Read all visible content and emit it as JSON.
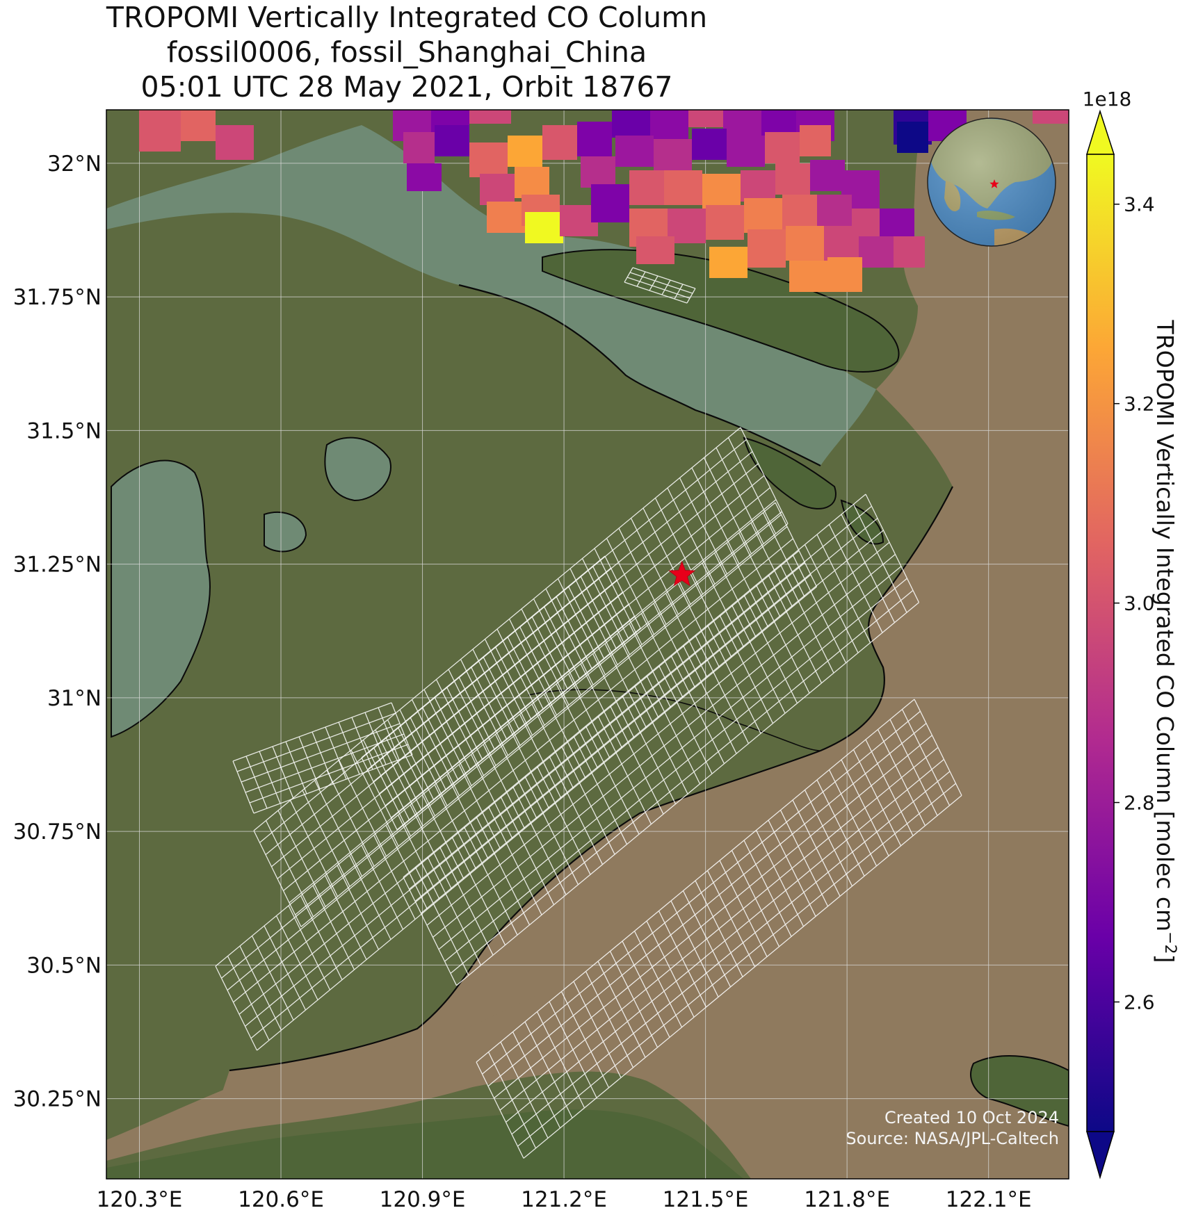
{
  "title": {
    "line1": "TROPOMI Vertically Integrated CO Column",
    "line2": "fossil0006, fossil_Shanghai_China",
    "line3": "05:01 UTC 28 May 2021, Orbit 18767"
  },
  "map": {
    "lon_range": [
      120.23,
      122.27
    ],
    "lat_range": [
      30.1,
      32.1
    ],
    "lon_ticks": [
      {
        "value": 120.3,
        "label": "120.3°E"
      },
      {
        "value": 120.6,
        "label": "120.6°E"
      },
      {
        "value": 120.9,
        "label": "120.9°E"
      },
      {
        "value": 121.2,
        "label": "121.2°E"
      },
      {
        "value": 121.5,
        "label": "121.5°E"
      },
      {
        "value": 121.8,
        "label": "121.8°E"
      },
      {
        "value": 122.1,
        "label": "122.1°E"
      }
    ],
    "lat_ticks": [
      {
        "value": 32.0,
        "label": "32°N"
      },
      {
        "value": 31.75,
        "label": "31.75°N"
      },
      {
        "value": 31.5,
        "label": "31.5°N"
      },
      {
        "value": 31.25,
        "label": "31.25°N"
      },
      {
        "value": 31.0,
        "label": "31°N"
      },
      {
        "value": 30.75,
        "label": "30.75°N"
      },
      {
        "value": 30.5,
        "label": "30.5°N"
      },
      {
        "value": 30.25,
        "label": "30.25°N"
      }
    ],
    "target": {
      "lon": 121.45,
      "lat": 31.23,
      "color": "#e8001a"
    },
    "colors": {
      "land": "#5d6a40",
      "water": "#6f8a74",
      "sea": "#8f7a5e",
      "coast": "#0a0a0a",
      "gridline": "#d9d9d9",
      "footprint": "#ffffff"
    }
  },
  "colorbar": {
    "label": "TROPOMI Vertically Integrated CO Column [molec cm",
    "label_exp": "−2",
    "label_close": "]",
    "offset": "1e18",
    "range": [
      2.47,
      3.45
    ],
    "ticks": [
      {
        "value": 2.6,
        "label": "2.6"
      },
      {
        "value": 2.8,
        "label": "2.8"
      },
      {
        "value": 3.0,
        "label": "3.0"
      },
      {
        "value": 3.2,
        "label": "3.2"
      },
      {
        "value": 3.4,
        "label": "3.4"
      }
    ],
    "colormap": "plasma",
    "stops": [
      "#0d0887",
      "#6a00a8",
      "#b12a90",
      "#e16462",
      "#fca636",
      "#f0f921"
    ]
  },
  "credits": {
    "line1": "Created 10 Oct 2024",
    "line2": "Source: NASA/JPL-Caltech"
  },
  "inset_globe": {
    "ocean": "#4f8fc9",
    "land": "#9aa878",
    "marker": "#e8001a"
  }
}
